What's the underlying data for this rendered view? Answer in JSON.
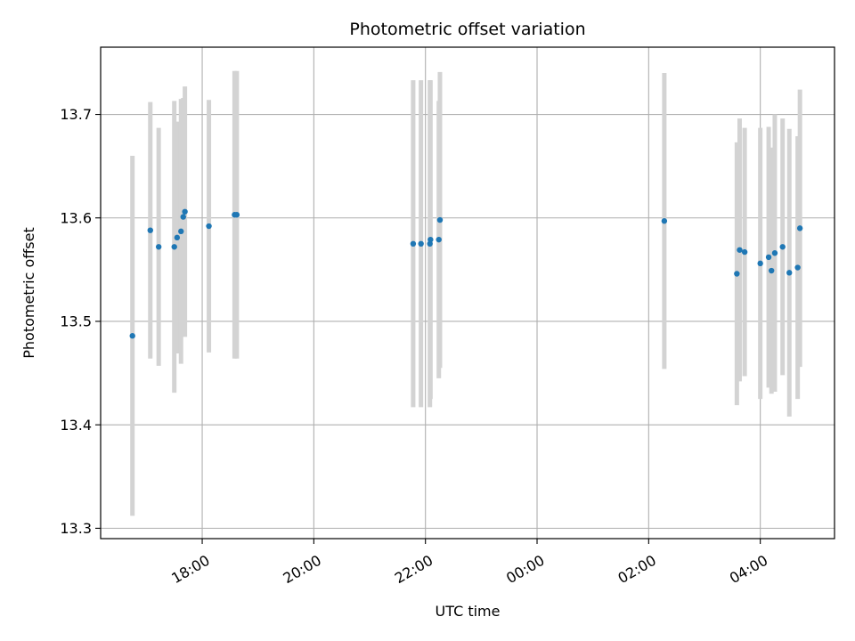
{
  "chart_data": {
    "type": "scatter",
    "title": "Photometric offset variation",
    "xlabel": "UTC time",
    "ylabel": "Photometric offset",
    "x_unit": "hours (UTC, continuing past midnight)",
    "xlim": [
      16.18,
      29.33
    ],
    "ylim": [
      13.29,
      13.765
    ],
    "x_ticks": [
      {
        "value": 18,
        "label": "18:00"
      },
      {
        "value": 20,
        "label": "20:00"
      },
      {
        "value": 22,
        "label": "22:00"
      },
      {
        "value": 24,
        "label": "00:00"
      },
      {
        "value": 26,
        "label": "02:00"
      },
      {
        "value": 28,
        "label": "04:00"
      }
    ],
    "y_ticks": [
      {
        "value": 13.3,
        "label": "13.3"
      },
      {
        "value": 13.4,
        "label": "13.4"
      },
      {
        "value": 13.5,
        "label": "13.5"
      },
      {
        "value": 13.6,
        "label": "13.6"
      },
      {
        "value": 13.7,
        "label": "13.7"
      }
    ],
    "grid": true,
    "colors": {
      "point": "#1f77b4",
      "errorbar": "#d3d3d3",
      "grid": "#b0b0b0"
    },
    "points": [
      {
        "x": 16.75,
        "y": 13.486,
        "yerr": 0.174
      },
      {
        "x": 17.07,
        "y": 13.588,
        "yerr": 0.124
      },
      {
        "x": 17.22,
        "y": 13.572,
        "yerr": 0.115
      },
      {
        "x": 17.5,
        "y": 13.572,
        "yerr": 0.141
      },
      {
        "x": 17.55,
        "y": 13.581,
        "yerr": 0.112
      },
      {
        "x": 17.62,
        "y": 13.587,
        "yerr": 0.128
      },
      {
        "x": 17.66,
        "y": 13.601,
        "yerr": 0.115
      },
      {
        "x": 17.69,
        "y": 13.606,
        "yerr": 0.121
      },
      {
        "x": 18.12,
        "y": 13.592,
        "yerr": 0.122
      },
      {
        "x": 18.58,
        "y": 13.603,
        "yerr": 0.139
      },
      {
        "x": 18.62,
        "y": 13.603,
        "yerr": 0.139
      },
      {
        "x": 21.78,
        "y": 13.575,
        "yerr": 0.158
      },
      {
        "x": 21.92,
        "y": 13.575,
        "yerr": 0.158
      },
      {
        "x": 22.08,
        "y": 13.575,
        "yerr": 0.158
      },
      {
        "x": 22.09,
        "y": 13.579,
        "yerr": 0.154
      },
      {
        "x": 22.24,
        "y": 13.579,
        "yerr": 0.134
      },
      {
        "x": 22.26,
        "y": 13.598,
        "yerr": 0.143
      },
      {
        "x": 26.28,
        "y": 13.597,
        "yerr": 0.143
      },
      {
        "x": 27.58,
        "y": 13.546,
        "yerr": 0.127
      },
      {
        "x": 27.63,
        "y": 13.569,
        "yerr": 0.127
      },
      {
        "x": 27.72,
        "y": 13.567,
        "yerr": 0.12
      },
      {
        "x": 28.0,
        "y": 13.556,
        "yerr": 0.131
      },
      {
        "x": 28.15,
        "y": 13.562,
        "yerr": 0.126
      },
      {
        "x": 28.2,
        "y": 13.549,
        "yerr": 0.119
      },
      {
        "x": 28.26,
        "y": 13.566,
        "yerr": 0.134
      },
      {
        "x": 28.4,
        "y": 13.572,
        "yerr": 0.124
      },
      {
        "x": 28.52,
        "y": 13.547,
        "yerr": 0.139
      },
      {
        "x": 28.67,
        "y": 13.552,
        "yerr": 0.127
      },
      {
        "x": 28.71,
        "y": 13.59,
        "yerr": 0.134
      }
    ]
  }
}
